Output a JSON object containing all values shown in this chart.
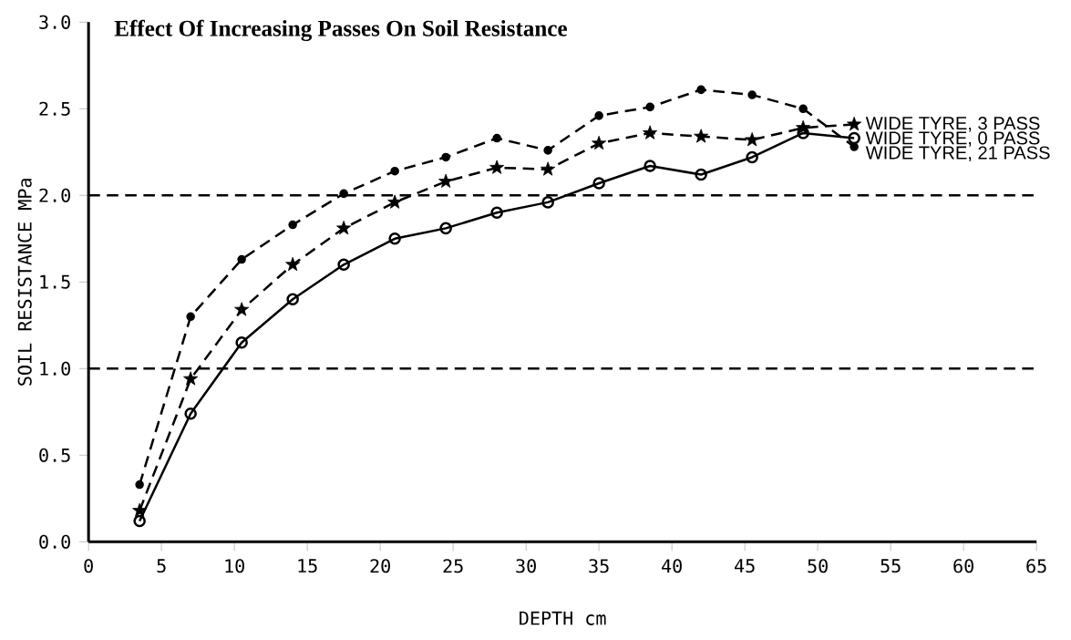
{
  "chart_data": {
    "type": "line",
    "title": "Effect Of Increasing Passes On Soil Resistance",
    "xlabel": "DEPTH cm",
    "ylabel": "SOIL RESISTANCE MPa",
    "x": [
      3.5,
      7,
      10.5,
      14,
      17.5,
      21,
      24.5,
      28,
      31.5,
      35,
      38.5,
      42,
      45.5,
      49,
      52.5
    ],
    "series": [
      {
        "name": "WIDE TYRE, 3 PASS",
        "color": "#000000",
        "marker": "star",
        "line_style": "dashed",
        "values": [
          0.18,
          0.94,
          1.34,
          1.6,
          1.81,
          1.96,
          2.08,
          2.16,
          2.15,
          2.3,
          2.36,
          2.34,
          2.32,
          2.39,
          2.41
        ]
      },
      {
        "name": "WIDE TYRE, 0 PASS",
        "color": "#000000",
        "marker": "circle",
        "line_style": "solid",
        "values": [
          0.12,
          0.74,
          1.15,
          1.4,
          1.6,
          1.75,
          1.81,
          1.9,
          1.96,
          2.07,
          2.17,
          2.12,
          2.22,
          2.36,
          2.33
        ]
      },
      {
        "name": "WIDE TYRE, 21 PASS",
        "color": "#000000",
        "marker": "dot",
        "line_style": "dashed",
        "values": [
          0.33,
          1.3,
          1.63,
          1.83,
          2.01,
          2.14,
          2.22,
          2.33,
          2.26,
          2.46,
          2.51,
          2.61,
          2.58,
          2.5,
          2.28
        ]
      }
    ],
    "xlim": [
      0,
      65
    ],
    "ylim": [
      0,
      3
    ],
    "xticks": [
      0,
      5,
      10,
      15,
      20,
      25,
      30,
      35,
      40,
      45,
      50,
      55,
      60,
      65
    ],
    "yticks": [
      {
        "value": 0,
        "label": "0.0"
      },
      {
        "value": 0.5,
        "label": "0.5"
      },
      {
        "value": 1,
        "label": "1.0"
      },
      {
        "value": 1.5,
        "label": "1.5"
      },
      {
        "value": 2,
        "label": "2.0"
      },
      {
        "value": 2.5,
        "label": "2.5"
      },
      {
        "value": 3,
        "label": "3.0"
      }
    ],
    "ref_lines": [
      {
        "axis": "y",
        "value": 1,
        "color": "#000000",
        "line_style": "dashed"
      },
      {
        "axis": "y",
        "value": 2,
        "color": "#000000",
        "line_style": "dashed"
      }
    ]
  }
}
